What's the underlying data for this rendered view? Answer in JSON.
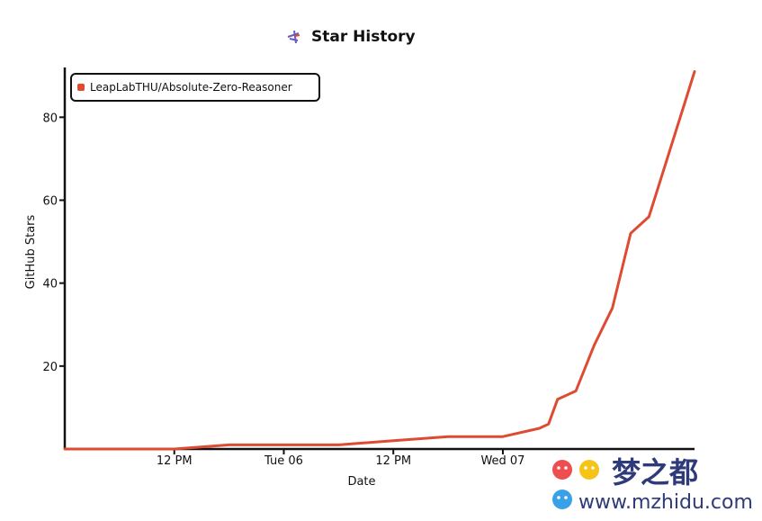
{
  "chart_data": {
    "type": "line",
    "title": "Star History",
    "xlabel": "Date",
    "ylabel": "GitHub Stars",
    "ylim": [
      0,
      92
    ],
    "y_ticks": [
      20,
      40,
      60,
      80
    ],
    "x_ticks": [
      "12 PM",
      "Tue 06",
      "12 PM",
      "Wed 07"
    ],
    "legend_position": "top-left",
    "series": [
      {
        "name": "LeapLabTHU/Absolute-Zero-Reasoner",
        "color": "#dd4b33",
        "x": [
          "May 5, 00:00",
          "May 5, 06:00",
          "May 5, 12:00",
          "May 5, 18:00",
          "May 6, 00:00",
          "May 6, 06:00",
          "May 6, 12:00",
          "May 6, 18:00",
          "May 7, 00:00",
          "May 7, 04:00",
          "May 7, 05:00",
          "May 7, 06:00",
          "May 7, 08:00",
          "May 7, 10:00",
          "May 7, 12:00",
          "May 7, 14:00",
          "May 7, 16:00",
          "May 7, 18:00",
          "May 7, 20:00",
          "May 7, 21:00"
        ],
        "values": [
          0,
          0,
          0,
          1,
          1,
          1,
          2,
          3,
          3,
          5,
          6,
          12,
          14,
          25,
          34,
          52,
          56,
          70,
          84,
          91
        ]
      }
    ]
  },
  "watermark": {
    "cn_text": "梦之都",
    "url_text": "www.mzhidu.com"
  },
  "colors": {
    "line": "#dd4b33",
    "axis": "#111111",
    "watermark_blue": "#2e3a7a"
  },
  "icons": {
    "title_icon": "star-history-logo-icon"
  }
}
